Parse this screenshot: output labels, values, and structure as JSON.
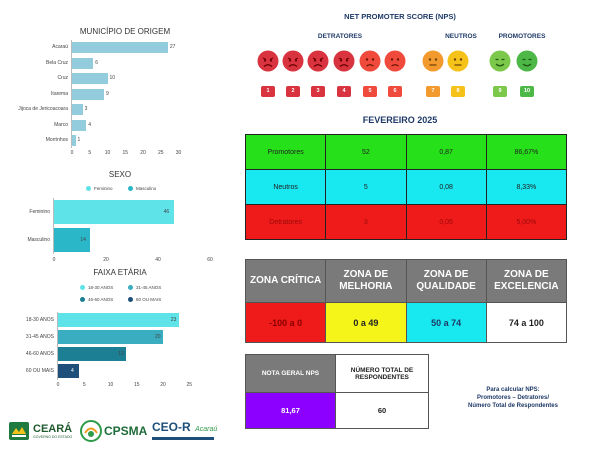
{
  "municipio": {
    "title": "MUNICÍPIO DE ORIGEM",
    "color": "#93cddd",
    "ticks": [
      "0",
      "5",
      "10",
      "15",
      "20",
      "25",
      "30"
    ],
    "items": [
      {
        "label": "Acaraú",
        "value": 27
      },
      {
        "label": "Bela Cruz",
        "value": 6
      },
      {
        "label": "Cruz",
        "value": 10
      },
      {
        "label": "Itarema",
        "value": 9
      },
      {
        "label": "Jijoca de Jericoacoara",
        "value": 3
      },
      {
        "label": "Marco",
        "value": 4
      },
      {
        "label": "Morrinhos",
        "value": 1
      }
    ]
  },
  "sexo": {
    "title": "SEXO",
    "legend": [
      {
        "label": "Feminino",
        "color": "#5ee3e8"
      },
      {
        "label": "Masculino",
        "color": "#2ab7c7"
      }
    ],
    "ticks": [
      "0",
      "20",
      "40",
      "60"
    ],
    "items": [
      {
        "label": "Feminino",
        "value": 46,
        "color": "#5ee3e8"
      },
      {
        "label": "Masculino",
        "value": 14,
        "color": "#2ab7c7"
      }
    ]
  },
  "faixa": {
    "title": "FAIXA ETÁRIA",
    "legend": [
      {
        "label": "18-30 ANOS",
        "color": "#5ee3e8"
      },
      {
        "label": "31-45 ANOS",
        "color": "#3aaec0"
      },
      {
        "label": "46-60 ANOS",
        "color": "#1d7f94"
      },
      {
        "label": "60 OU MAIS",
        "color": "#1d4f7a"
      }
    ],
    "ticks": [
      "0",
      "5",
      "10",
      "15",
      "20",
      "25"
    ],
    "items": [
      {
        "label": "18-30 ANOS",
        "value": 23,
        "color": "#5ee3e8"
      },
      {
        "label": "31-45 ANOS",
        "value": 20,
        "color": "#3aaec0"
      },
      {
        "label": "46-60 ANOS",
        "value": 13,
        "color": "#1d7f94"
      },
      {
        "label": "60 OU MAIS",
        "value": 4,
        "color": "#1d4f7a"
      }
    ]
  },
  "nps": {
    "title": "NET PROMOTER SCORE (NPS)",
    "detratores_label": "DETRATORES",
    "neutros_label": "NEUTROS",
    "promotores_label": "PROMOTORES",
    "scores": [
      "1",
      "2",
      "3",
      "4",
      "5",
      "6",
      "7",
      "8",
      "9",
      "10"
    ]
  },
  "month_title": "FEVEREIRO 2025",
  "summary_rows": [
    {
      "category": "Promotores",
      "count": "52",
      "ratio": "0,87",
      "percent": "86,67%",
      "color": "#26e01a"
    },
    {
      "category": "Neutros",
      "count": "5",
      "ratio": "0,08",
      "percent": "8,33%",
      "color": "#18e8ef"
    },
    {
      "category": "Detratores",
      "count": "3",
      "ratio": "0,05",
      "percent": "5,00%",
      "color": "#ef1a1a"
    }
  ],
  "zones": {
    "headers": [
      "ZONA CRÍTICA",
      "ZONA DE MELHORIA",
      "ZONA DE QUALIDADE",
      "ZONA DE EXCELENCIA"
    ],
    "ranges": [
      "-100 a 0",
      "0 a 49",
      "50 a 74",
      "74 a 100"
    ]
  },
  "nota": {
    "header1": "NOTA GERAL NPS",
    "header2": "NÚMERO TOTAL DE RESPONDENTES",
    "value1": "81,67",
    "value2": "60"
  },
  "formula": {
    "line1": "Para calcular NPS:",
    "line2": "Promotores – Detratores/",
    "line3": "Número Total de Respondentes"
  },
  "logos": {
    "ceara": "CEARÁ",
    "ceara_sub": "GOVERNO DO ESTADO",
    "cpsma": "CPSMA",
    "ceor": "CEO-R",
    "ceor_city": "Acaraú"
  }
}
